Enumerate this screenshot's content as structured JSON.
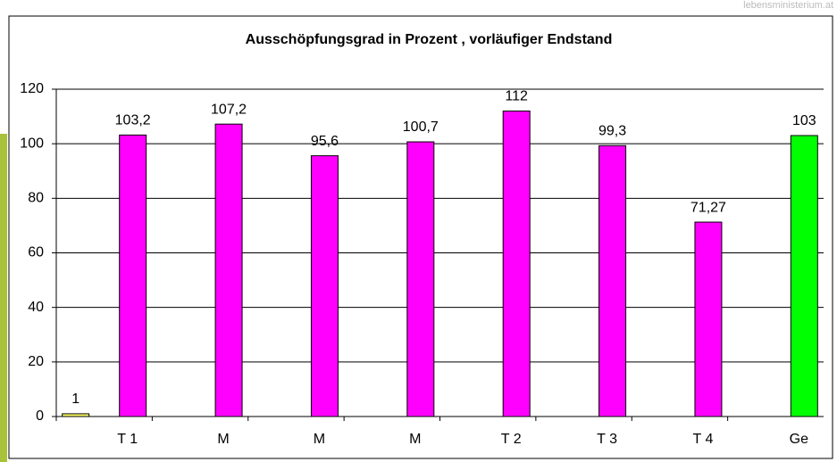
{
  "watermark": "lebensministerium.at",
  "chart_data": {
    "type": "bar",
    "title": "Ausschöpfungsgrad in Prozent , vorläufiger Endstand",
    "categories": [
      "T 1",
      "M",
      "M",
      "M",
      "T 2",
      "T 3",
      "T 4",
      "Ge"
    ],
    "series": [
      {
        "color": "#ffff66",
        "values": [
          1,
          null,
          null,
          null,
          null,
          null,
          null,
          null
        ],
        "value_labels": [
          "1",
          null,
          null,
          null,
          null,
          null,
          null,
          null
        ]
      },
      {
        "colors": [
          "#ff00ff",
          "#ff00ff",
          "#ff00ff",
          "#ff00ff",
          "#ff00ff",
          "#ff00ff",
          "#ff00ff",
          "#00ff00"
        ],
        "values": [
          103.2,
          107.2,
          95.6,
          100.7,
          112,
          99.3,
          71.27,
          103
        ],
        "value_labels": [
          "103,2",
          "107,2",
          "95,6",
          "100,7",
          "112",
          "99,3",
          "71,27",
          "103"
        ]
      }
    ],
    "ylim": [
      0,
      120
    ],
    "yticks": [
      0,
      20,
      40,
      60,
      80,
      100,
      120
    ],
    "grid": true
  }
}
